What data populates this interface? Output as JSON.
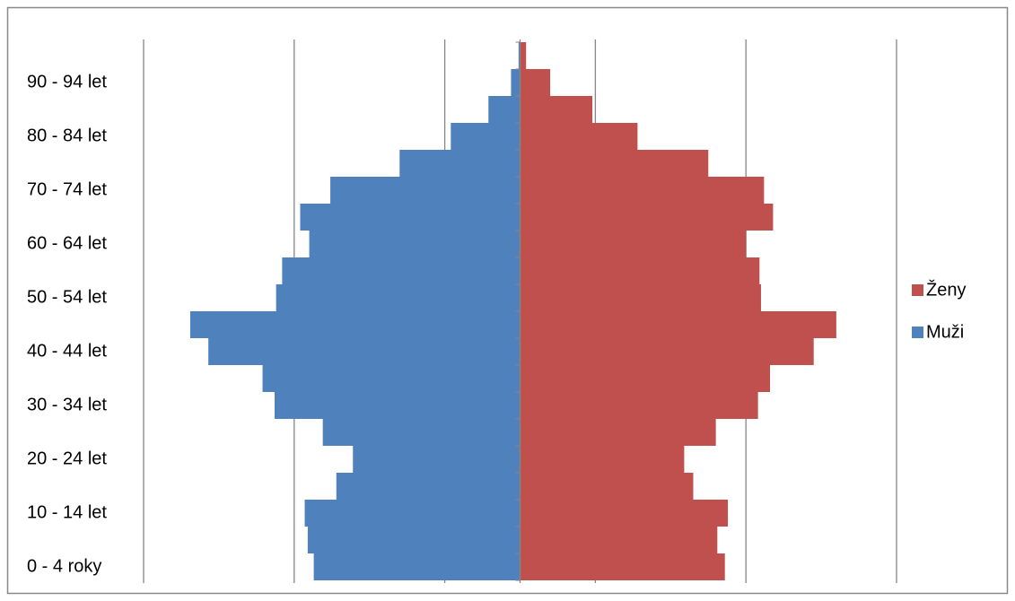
{
  "chart_data": {
    "type": "pyramid",
    "categories": [
      "0 - 4 roky",
      null,
      "10 - 14 let",
      null,
      "20 - 24 let",
      null,
      "30 - 34 let",
      null,
      "40 - 44 let",
      null,
      "50 - 54 let",
      null,
      "60 - 64 let",
      null,
      "70 - 74 let",
      null,
      "80 - 84 let",
      null,
      "90 - 94 let",
      null
    ],
    "series": [
      {
        "name": "Ženy",
        "color": "#c0504d",
        "side": "right",
        "values": [
          136,
          131,
          138,
          115,
          109,
          130,
          158,
          166,
          195,
          210,
          160,
          159,
          150,
          168,
          162,
          125,
          78,
          48,
          20,
          4
        ]
      },
      {
        "name": "Muži",
        "color": "#4f81bd",
        "side": "left",
        "values": [
          137,
          141,
          143,
          122,
          111,
          131,
          163,
          171,
          207,
          219,
          162,
          158,
          140,
          146,
          126,
          80,
          46,
          21,
          6,
          1
        ]
      }
    ],
    "xlim": [
      -250,
      250
    ],
    "xticks": [
      -250,
      -150,
      -50,
      50,
      150,
      250
    ],
    "grid": true,
    "legend": "right"
  }
}
